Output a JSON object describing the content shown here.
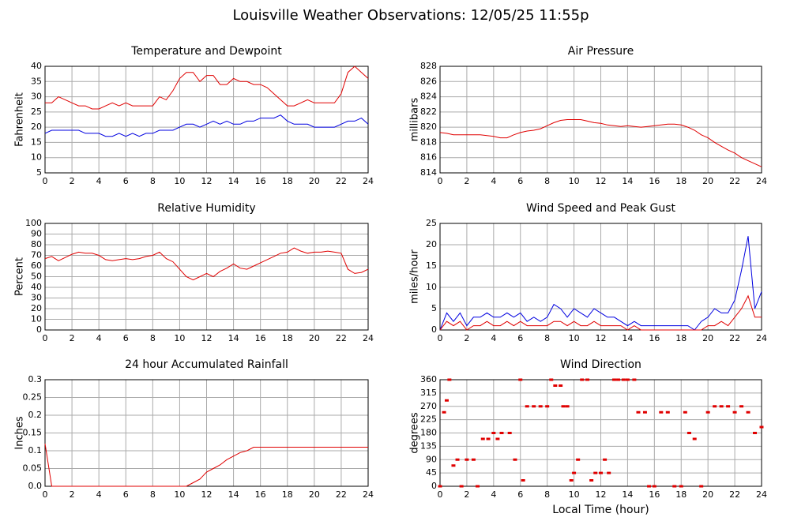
{
  "title": "Louisville Weather Observations: 12/05/25 11:55p",
  "chart_data": [
    {
      "type": "line",
      "title": "Temperature and Dewpoint",
      "ylabel": "Fahrenheit",
      "x": [
        0,
        0.5,
        1,
        1.5,
        2,
        2.5,
        3,
        3.5,
        4,
        4.5,
        5,
        5.5,
        6,
        6.5,
        7,
        7.5,
        8,
        8.5,
        9,
        9.5,
        10,
        10.5,
        11,
        11.5,
        12,
        12.5,
        13,
        13.5,
        14,
        14.5,
        15,
        15.5,
        16,
        16.5,
        17,
        17.5,
        18,
        18.5,
        19,
        19.5,
        20,
        20.5,
        21,
        21.5,
        22,
        22.5,
        23,
        23.5,
        24
      ],
      "series": [
        {
          "color": "#e00000",
          "values": [
            28,
            28,
            30,
            29,
            28,
            27,
            27,
            26,
            26,
            27,
            28,
            27,
            28,
            27,
            27,
            27,
            27,
            30,
            29,
            32,
            36,
            38,
            38,
            35,
            37,
            37,
            34,
            34,
            36,
            35,
            35,
            34,
            34,
            33,
            31,
            29,
            27,
            27,
            28,
            29,
            28,
            28,
            28,
            28,
            31,
            38,
            40,
            38,
            36
          ]
        },
        {
          "color": "#0000e0",
          "values": [
            18,
            19,
            19,
            19,
            19,
            19,
            18,
            18,
            18,
            17,
            17,
            18,
            17,
            18,
            17,
            18,
            18,
            19,
            19,
            19,
            20,
            21,
            21,
            20,
            21,
            22,
            21,
            22,
            21,
            21,
            22,
            22,
            23,
            23,
            23,
            24,
            22,
            21,
            21,
            21,
            20,
            20,
            20,
            20,
            21,
            22,
            22,
            23,
            21
          ]
        }
      ],
      "xlim": [
        0,
        24
      ],
      "xticks": [
        0,
        2,
        4,
        6,
        8,
        10,
        12,
        14,
        16,
        18,
        20,
        22,
        24
      ],
      "ylim": [
        5,
        40
      ],
      "yticks": [
        5,
        10,
        15,
        20,
        25,
        30,
        35,
        40
      ],
      "grid": true
    },
    {
      "type": "line",
      "title": "Air Pressure",
      "ylabel": "millibars",
      "x": [
        0,
        0.5,
        1,
        1.5,
        2,
        2.5,
        3,
        3.5,
        4,
        4.5,
        5,
        5.5,
        6,
        6.5,
        7,
        7.5,
        8,
        8.5,
        9,
        9.5,
        10,
        10.5,
        11,
        11.5,
        12,
        12.5,
        13,
        13.5,
        14,
        14.5,
        15,
        15.5,
        16,
        16.5,
        17,
        17.5,
        18,
        18.5,
        19,
        19.5,
        20,
        20.5,
        21,
        21.5,
        22,
        22.5,
        23,
        23.5,
        24
      ],
      "series": [
        {
          "color": "#e00000",
          "values": [
            819.3,
            819.2,
            819,
            819,
            819,
            819,
            819,
            818.9,
            818.8,
            818.6,
            818.6,
            819,
            819.3,
            819.5,
            819.6,
            819.8,
            820.2,
            820.6,
            820.9,
            821,
            821,
            821,
            820.8,
            820.6,
            820.5,
            820.3,
            820.2,
            820.1,
            820.2,
            820.1,
            820,
            820.1,
            820.2,
            820.3,
            820.4,
            820.4,
            820.3,
            820,
            819.6,
            819,
            818.6,
            818,
            817.5,
            817,
            816.6,
            816,
            815.6,
            815.2,
            814.8
          ]
        }
      ],
      "xlim": [
        0,
        24
      ],
      "xticks": [
        0,
        2,
        4,
        6,
        8,
        10,
        12,
        14,
        16,
        18,
        20,
        22,
        24
      ],
      "ylim": [
        814,
        828
      ],
      "yticks": [
        814,
        816,
        818,
        820,
        822,
        824,
        826,
        828
      ],
      "grid": true
    },
    {
      "type": "line",
      "title": "Relative Humidity",
      "ylabel": "Percent",
      "x": [
        0,
        0.5,
        1,
        1.5,
        2,
        2.5,
        3,
        3.5,
        4,
        4.5,
        5,
        5.5,
        6,
        6.5,
        7,
        7.5,
        8,
        8.5,
        9,
        9.5,
        10,
        10.5,
        11,
        11.5,
        12,
        12.5,
        13,
        13.5,
        14,
        14.5,
        15,
        15.5,
        16,
        16.5,
        17,
        17.5,
        18,
        18.5,
        19,
        19.5,
        20,
        20.5,
        21,
        21.5,
        22,
        22.5,
        23,
        23.5,
        24
      ],
      "series": [
        {
          "color": "#e00000",
          "values": [
            67,
            69,
            65,
            68,
            71,
            73,
            72,
            72,
            70,
            66,
            65,
            66,
            67,
            66,
            67,
            69,
            70,
            73,
            67,
            64,
            57,
            50,
            47,
            50,
            53,
            50,
            55,
            58,
            62,
            58,
            57,
            60,
            63,
            66,
            69,
            72,
            73,
            77,
            74,
            72,
            73,
            73,
            74,
            73,
            72,
            57,
            53,
            54,
            57
          ]
        }
      ],
      "xlim": [
        0,
        24
      ],
      "xticks": [
        0,
        2,
        4,
        6,
        8,
        10,
        12,
        14,
        16,
        18,
        20,
        22,
        24
      ],
      "ylim": [
        0,
        100
      ],
      "yticks": [
        0,
        10,
        20,
        30,
        40,
        50,
        60,
        70,
        80,
        90,
        100
      ],
      "grid": true
    },
    {
      "type": "line",
      "title": "Wind Speed and Peak Gust",
      "ylabel": "miles/hour",
      "x": [
        0,
        0.5,
        1,
        1.5,
        2,
        2.5,
        3,
        3.5,
        4,
        4.5,
        5,
        5.5,
        6,
        6.5,
        7,
        7.5,
        8,
        8.5,
        9,
        9.5,
        10,
        10.5,
        11,
        11.5,
        12,
        12.5,
        13,
        13.5,
        14,
        14.5,
        15,
        15.5,
        16,
        16.5,
        17,
        17.5,
        18,
        18.5,
        19,
        19.5,
        20,
        20.5,
        21,
        21.5,
        22,
        22.5,
        23,
        23.5,
        24
      ],
      "series": [
        {
          "color": "#0000e0",
          "values": [
            0,
            4,
            2,
            4,
            1,
            3,
            3,
            4,
            3,
            3,
            4,
            3,
            4,
            2,
            3,
            2,
            3,
            6,
            5,
            3,
            5,
            4,
            3,
            5,
            4,
            3,
            3,
            2,
            1,
            2,
            1,
            1,
            1,
            1,
            1,
            1,
            1,
            1,
            0,
            2,
            3,
            5,
            4,
            4,
            7,
            14,
            22,
            5,
            9
          ]
        },
        {
          "color": "#e00000",
          "values": [
            0,
            2,
            1,
            2,
            0,
            1,
            1,
            2,
            1,
            1,
            2,
            1,
            2,
            1,
            1,
            1,
            1,
            2,
            2,
            1,
            2,
            1,
            1,
            2,
            1,
            1,
            1,
            1,
            0,
            1,
            0,
            0,
            0,
            0,
            0,
            0,
            0,
            0,
            0,
            0,
            1,
            1,
            2,
            1,
            3,
            5,
            8,
            3,
            3
          ]
        }
      ],
      "xlim": [
        0,
        24
      ],
      "xticks": [
        0,
        2,
        4,
        6,
        8,
        10,
        12,
        14,
        16,
        18,
        20,
        22,
        24
      ],
      "ylim": [
        0,
        25
      ],
      "yticks": [
        0,
        5,
        10,
        15,
        20,
        25
      ],
      "grid": true
    },
    {
      "type": "line",
      "title": "24 hour Accumulated Rainfall",
      "ylabel": "Inches",
      "x": [
        0,
        0.5,
        1,
        1.5,
        2,
        2.5,
        3,
        3.5,
        4,
        4.5,
        5,
        5.5,
        6,
        6.5,
        7,
        7.5,
        8,
        8.5,
        9,
        9.5,
        10,
        10.5,
        11,
        11.5,
        12,
        12.5,
        13,
        13.5,
        14,
        14.5,
        15,
        15.5,
        16,
        16.5,
        17,
        17.5,
        18,
        18.5,
        19,
        19.5,
        20,
        20.5,
        21,
        21.5,
        22,
        22.5,
        23,
        23.5,
        24
      ],
      "series": [
        {
          "color": "#e00000",
          "values": [
            0.12,
            0,
            0,
            0,
            0,
            0,
            0,
            0,
            0,
            0,
            0,
            0,
            0,
            0,
            0,
            0,
            0,
            0,
            0,
            0,
            0,
            0,
            0.01,
            0.02,
            0.04,
            0.05,
            0.06,
            0.075,
            0.085,
            0.095,
            0.1,
            0.11,
            0.11,
            0.11,
            0.11,
            0.11,
            0.11,
            0.11,
            0.11,
            0.11,
            0.11,
            0.11,
            0.11,
            0.11,
            0.11,
            0.11,
            0.11,
            0.11,
            0.11
          ]
        }
      ],
      "xlim": [
        0,
        24
      ],
      "xticks": [
        0,
        2,
        4,
        6,
        8,
        10,
        12,
        14,
        16,
        18,
        20,
        22,
        24
      ],
      "ylim": [
        0,
        0.3
      ],
      "yticks": [
        {
          "value": 0,
          "label": "0.0"
        },
        0.05,
        0.1,
        0.15,
        0.2,
        0.25,
        0.3
      ],
      "grid": true
    },
    {
      "type": "scatter",
      "title": "Wind Direction",
      "ylabel": "degrees",
      "xlabel": "Local Time (hour)",
      "series": [
        {
          "color": "#e00000",
          "x": [
            0,
            0.3,
            0.5,
            0.7,
            1,
            1.3,
            1.6,
            2,
            2.5,
            2.8,
            3.2,
            3.6,
            4,
            4.3,
            4.6,
            5.2,
            5.6,
            6,
            6.2,
            6.5,
            7,
            7.5,
            8,
            8.3,
            8.6,
            9,
            9.2,
            9.5,
            9.8,
            10,
            10.3,
            10.6,
            11,
            11.3,
            11.6,
            12,
            12.3,
            12.6,
            13,
            13.3,
            13.7,
            14,
            14.5,
            14.8,
            15.3,
            15.6,
            16,
            16.5,
            17,
            17.5,
            18,
            18.3,
            18.6,
            19,
            19.5,
            20,
            20.5,
            21,
            21.5,
            22,
            22.5,
            23,
            23.5,
            24
          ],
          "values": [
            0,
            250,
            290,
            360,
            70,
            90,
            0,
            90,
            90,
            0,
            160,
            160,
            180,
            160,
            180,
            180,
            90,
            360,
            20,
            270,
            270,
            270,
            270,
            360,
            340,
            340,
            270,
            270,
            20,
            45,
            90,
            360,
            360,
            20,
            45,
            45,
            90,
            45,
            360,
            360,
            360,
            360,
            360,
            250,
            250,
            0,
            0,
            250,
            250,
            0,
            0,
            250,
            180,
            160,
            0,
            250,
            270,
            270,
            270,
            250,
            270,
            250,
            180,
            200
          ]
        }
      ],
      "xlim": [
        0,
        24
      ],
      "xticks": [
        0,
        2,
        4,
        6,
        8,
        10,
        12,
        14,
        16,
        18,
        20,
        22,
        24
      ],
      "ylim": [
        0,
        360
      ],
      "yticks": [
        0,
        45,
        90,
        135,
        180,
        225,
        270,
        315,
        360
      ],
      "grid": true
    }
  ]
}
